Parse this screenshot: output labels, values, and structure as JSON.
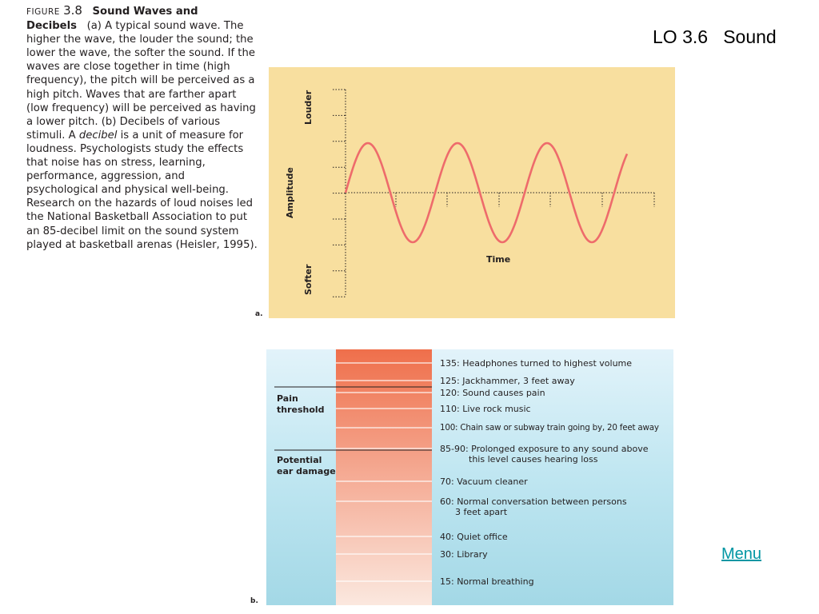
{
  "slide": {
    "title": "LO 3.6   Sound",
    "menu_link": "Menu"
  },
  "caption": {
    "figure_word": "FIGURE",
    "figure_number": "3.8",
    "figure_title": "Sound Waves and Decibels",
    "text_1": "(a) A typical sound wave. The higher the wave, the louder the sound; the lower the wave, the softer the sound. If the waves are close together in time (high frequency), the pitch will be perceived as a high pitch. Waves that are farther apart (low frequency) will be perceived as having a lower pitch. (b) Decibels of various stimuli. A ",
    "text_italic": "decibel",
    "text_2": " is a unit of measure for loudness. Psychologists study the effects that noise has on stress, learning, performance, aggression, and psychological and physical well-being. Research on the hazards of loud noises led the National Basketball Association to put an 85-decibel limit on the sound system played at basketball arenas (Heisler, 1995)."
  },
  "wave_panel": {
    "panel_label": "a.",
    "y_label_top": "Louder",
    "y_label_mid": "Amplitude",
    "y_label_bottom": "Softer",
    "x_label": "Time",
    "wave_color": "#ee6b6b",
    "background_color": "#f8df9f",
    "cycles": 3.15
  },
  "decibel_panel": {
    "panel_label": "b.",
    "pain_threshold_label": [
      "Pain",
      "threshold"
    ],
    "ear_damage_label": [
      "Potential",
      "ear damage"
    ],
    "bar_color_top": "#ef6f4b",
    "bar_color_bottom": "#fbe8df",
    "levels": [
      {
        "line1": "135: Headphones turned to highest volume",
        "line2": ""
      },
      {
        "line1": "125: Jackhammer, 3 feet away",
        "line2": ""
      },
      {
        "line1": "120: Sound causes pain",
        "line2": ""
      },
      {
        "line1": "110: Live rock music",
        "line2": ""
      },
      {
        "line1": "100: Chain saw or subway train going by, 20 feet away",
        "line2": ""
      },
      {
        "line1": "85-90: Prolonged exposure to any sound above",
        "line2": "this level causes hearing loss"
      },
      {
        "line1": "70: Vacuum cleaner",
        "line2": ""
      },
      {
        "line1": "60: Normal conversation between persons",
        "line2": "3 feet apart"
      },
      {
        "line1": "40: Quiet office",
        "line2": ""
      },
      {
        "line1": "30: Library",
        "line2": ""
      },
      {
        "line1": "15: Normal breathing",
        "line2": ""
      }
    ]
  }
}
